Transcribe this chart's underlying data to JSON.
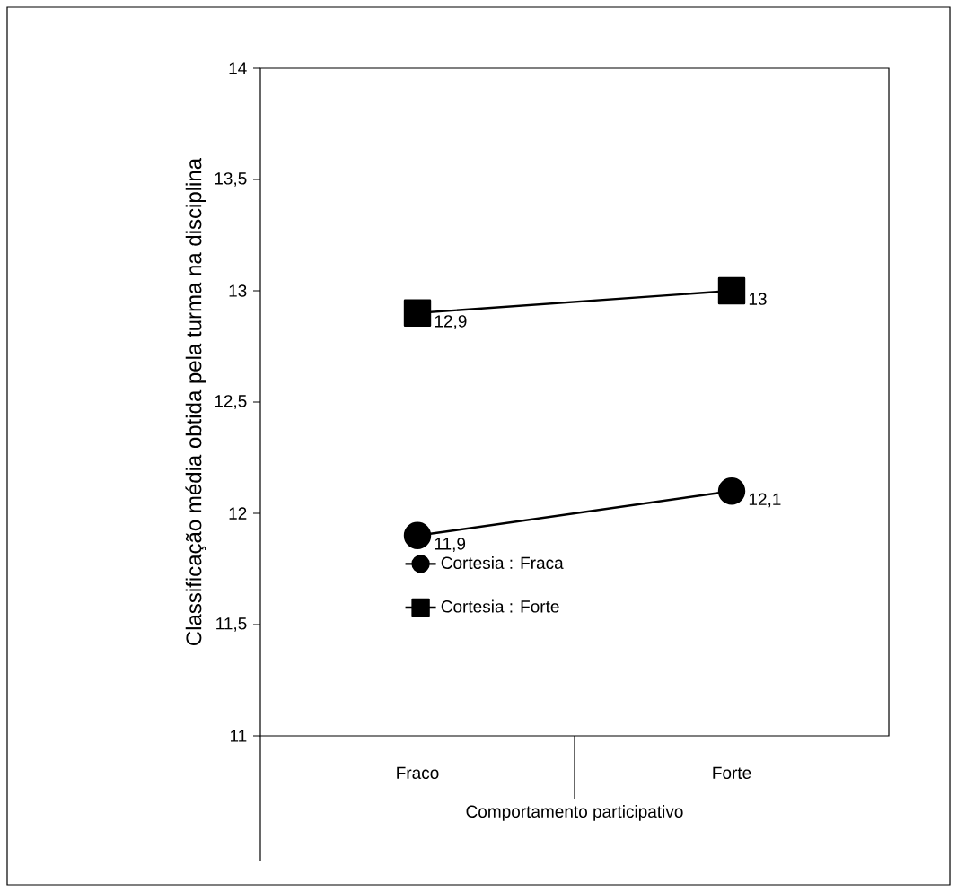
{
  "chart_data": {
    "type": "line",
    "xlabel": "Comportamento participativo",
    "ylabel": "Classificação média obtida pela turma na disciplina",
    "categories": [
      "Fraco",
      "Forte"
    ],
    "series": [
      {
        "name": "Cortesia : Fraca",
        "color": "#000000",
        "marker": "circle",
        "values": [
          11.9,
          12.1
        ],
        "value_labels": [
          "11,9",
          "12,1"
        ]
      },
      {
        "name": "Cortesia : Forte",
        "color": "#000000",
        "marker": "square",
        "values": [
          12.9,
          13
        ],
        "value_labels": [
          "12,9",
          "13"
        ]
      }
    ],
    "ylim": [
      11,
      14
    ],
    "yticks": [
      11,
      {
        "value": 11.5,
        "label": "11,5"
      },
      12,
      {
        "value": 12.5,
        "label": "12,5"
      },
      13,
      {
        "value": 13.5,
        "label": "13,5"
      },
      14
    ],
    "legend": "bottom left"
  }
}
